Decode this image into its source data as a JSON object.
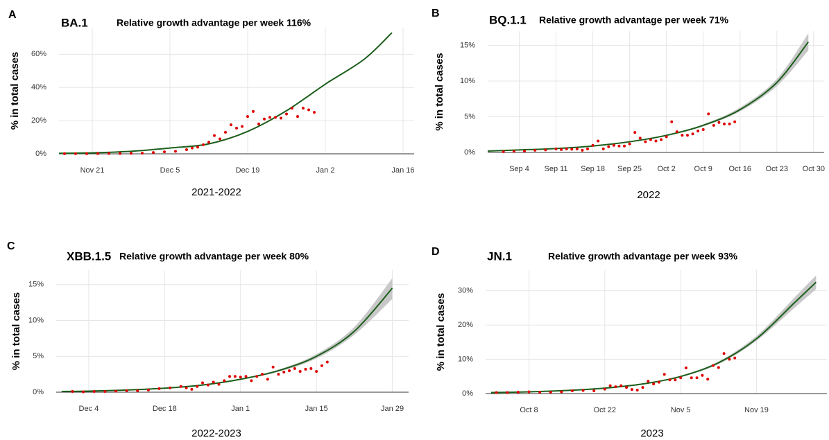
{
  "chart_data": [
    {
      "type": "line",
      "panel": "A",
      "variant": "BA.1",
      "title": "Relative growth advantage per week 116%",
      "ylabel": "% in total cases",
      "xlabel": "2021-2022",
      "xlim": [
        "2021-11-15",
        "2022-01-18"
      ],
      "xticks": [
        {
          "value": "2021-11-21",
          "label": "Nov 21"
        },
        {
          "value": "2021-12-05",
          "label": "Dec 5"
        },
        {
          "value": "2021-12-19",
          "label": "Dec 19"
        },
        {
          "value": "2022-01-02",
          "label": "Jan 2"
        },
        {
          "value": "2022-01-16",
          "label": "Jan 16"
        }
      ],
      "ylim": [
        0,
        76
      ],
      "yticks": [
        {
          "value": 0,
          "label": "0%"
        },
        {
          "value": 20,
          "label": "20%"
        },
        {
          "value": 40,
          "label": "40%"
        },
        {
          "value": 60,
          "label": "60%"
        }
      ],
      "grid": true,
      "points": {
        "color": "#e00000",
        "x": [
          "2021-11-16",
          "2021-11-18",
          "2021-11-20",
          "2021-11-22",
          "2021-11-24",
          "2021-11-26",
          "2021-11-28",
          "2021-11-30",
          "2021-12-02",
          "2021-12-04",
          "2021-12-06",
          "2021-12-08",
          "2021-12-09",
          "2021-12-10",
          "2021-12-11",
          "2021-12-12",
          "2021-12-13",
          "2021-12-14",
          "2021-12-15",
          "2021-12-16",
          "2021-12-17",
          "2021-12-18",
          "2021-12-19",
          "2021-12-20",
          "2021-12-21",
          "2021-12-22",
          "2021-12-23",
          "2021-12-24",
          "2021-12-25",
          "2021-12-26",
          "2021-12-27",
          "2021-12-28",
          "2021-12-29",
          "2021-12-30",
          "2021-12-31"
        ],
        "values": [
          0.1,
          0.1,
          0.1,
          0.15,
          0.2,
          0.2,
          0.3,
          0.4,
          0.8,
          1.2,
          1.5,
          2.5,
          3.5,
          4,
          5.5,
          7,
          11,
          9,
          13,
          17.5,
          15.5,
          16.5,
          22.5,
          25.5,
          18,
          21,
          22,
          22,
          21.5,
          24,
          27.5,
          22.5,
          27.5,
          26.5,
          25
        ]
      },
      "fit": {
        "color": "#1b5e1b",
        "x": [
          "2021-11-15",
          "2021-11-21",
          "2021-11-28",
          "2021-12-05",
          "2021-12-12",
          "2021-12-19",
          "2021-12-26",
          "2022-01-02",
          "2022-01-09",
          "2022-01-14"
        ],
        "values": [
          0.3,
          0.6,
          1.5,
          3.5,
          6,
          13.5,
          26,
          42,
          57,
          73
        ]
      }
    },
    {
      "type": "line",
      "panel": "B",
      "variant": "BQ.1.1",
      "title": "Relative growth advantage per week 71%",
      "ylabel": "% in total cases",
      "xlabel": "2022",
      "xlim": [
        "2022-08-29",
        "2022-11-01"
      ],
      "xticks": [
        {
          "value": "2022-09-04",
          "label": "Sep 4"
        },
        {
          "value": "2022-09-11",
          "label": "Sep 11"
        },
        {
          "value": "2022-09-18",
          "label": "Sep 18"
        },
        {
          "value": "2022-09-25",
          "label": "Sep 25"
        },
        {
          "value": "2022-10-02",
          "label": "Oct 2"
        },
        {
          "value": "2022-10-09",
          "label": "Oct 9"
        },
        {
          "value": "2022-10-16",
          "label": "Oct 16"
        },
        {
          "value": "2022-10-23",
          "label": "Oct 23"
        },
        {
          "value": "2022-10-30",
          "label": "Oct 30"
        }
      ],
      "ylim": [
        0,
        17
      ],
      "yticks": [
        {
          "value": 0,
          "label": "0%"
        },
        {
          "value": 5,
          "label": "5%"
        },
        {
          "value": 10,
          "label": "10%"
        },
        {
          "value": 15,
          "label": "15%"
        }
      ],
      "grid": true,
      "points": {
        "color": "#e00000",
        "x": [
          "2022-09-01",
          "2022-09-03",
          "2022-09-05",
          "2022-09-07",
          "2022-09-09",
          "2022-09-11",
          "2022-09-12",
          "2022-09-13",
          "2022-09-14",
          "2022-09-15",
          "2022-09-16",
          "2022-09-17",
          "2022-09-18",
          "2022-09-19",
          "2022-09-20",
          "2022-09-21",
          "2022-09-22",
          "2022-09-23",
          "2022-09-24",
          "2022-09-25",
          "2022-09-26",
          "2022-09-27",
          "2022-09-28",
          "2022-09-29",
          "2022-09-30",
          "2022-10-01",
          "2022-10-02",
          "2022-10-03",
          "2022-10-04",
          "2022-10-05",
          "2022-10-06",
          "2022-10-07",
          "2022-10-08",
          "2022-10-09",
          "2022-10-10",
          "2022-10-11",
          "2022-10-12",
          "2022-10-13",
          "2022-10-14",
          "2022-10-15"
        ],
        "values": [
          0.1,
          0.15,
          0.2,
          0.3,
          0.35,
          0.5,
          0.4,
          0.5,
          0.45,
          0.5,
          0.3,
          0.5,
          1.0,
          1.6,
          0.5,
          0.8,
          1.0,
          0.9,
          0.9,
          1.2,
          2.8,
          2.0,
          1.5,
          1.8,
          1.6,
          1.8,
          2.2,
          4.3,
          2.9,
          2.4,
          2.4,
          2.6,
          3.0,
          3.2,
          5.4,
          3.8,
          4.2,
          4.0,
          4.0,
          4.3
        ]
      },
      "fit": {
        "color": "#1b5e1b",
        "band_color": "#c8c8c8",
        "x": [
          "2022-08-29",
          "2022-09-04",
          "2022-09-11",
          "2022-09-18",
          "2022-09-25",
          "2022-10-02",
          "2022-10-09",
          "2022-10-16",
          "2022-10-23",
          "2022-10-29"
        ],
        "values": [
          0.2,
          0.35,
          0.55,
          0.9,
          1.5,
          2.4,
          3.8,
          6.0,
          9.8,
          15.5
        ],
        "lower": [
          0.2,
          0.35,
          0.53,
          0.87,
          1.45,
          2.3,
          3.65,
          5.75,
          9.3,
          14.3
        ],
        "upper": [
          0.2,
          0.36,
          0.57,
          0.93,
          1.55,
          2.5,
          3.95,
          6.3,
          10.3,
          16.7
        ]
      }
    },
    {
      "type": "line",
      "panel": "C",
      "variant": "XBB.1.5",
      "title": "Relative growth advantage per week 80%",
      "ylabel": "% in total cases",
      "xlabel": "2022-2023",
      "xlim": [
        "2022-11-28",
        "2023-02-01"
      ],
      "xticks": [
        {
          "value": "2022-12-04",
          "label": "Dec 4"
        },
        {
          "value": "2022-12-18",
          "label": "Dec 18"
        },
        {
          "value": "2023-01-01",
          "label": "Jan 1"
        },
        {
          "value": "2023-01-15",
          "label": "Jan 15"
        },
        {
          "value": "2023-01-29",
          "label": "Jan 29"
        }
      ],
      "ylim": [
        0,
        17
      ],
      "yticks": [
        {
          "value": 0,
          "label": "0%"
        },
        {
          "value": 5,
          "label": "5%"
        },
        {
          "value": 10,
          "label": "10%"
        },
        {
          "value": 15,
          "label": "15%"
        }
      ],
      "grid": true,
      "points": {
        "color": "#e00000",
        "x": [
          "2022-12-01",
          "2022-12-03",
          "2022-12-05",
          "2022-12-07",
          "2022-12-09",
          "2022-12-11",
          "2022-12-13",
          "2022-12-15",
          "2022-12-17",
          "2022-12-19",
          "2022-12-21",
          "2022-12-22",
          "2022-12-23",
          "2022-12-24",
          "2022-12-25",
          "2022-12-26",
          "2022-12-27",
          "2022-12-28",
          "2022-12-29",
          "2022-12-30",
          "2022-12-31",
          "2023-01-01",
          "2023-01-02",
          "2023-01-03",
          "2023-01-04",
          "2023-01-05",
          "2023-01-06",
          "2023-01-07",
          "2023-01-08",
          "2023-01-09",
          "2023-01-10",
          "2023-01-11",
          "2023-01-12",
          "2023-01-13",
          "2023-01-14",
          "2023-01-15",
          "2023-01-16",
          "2023-01-17"
        ],
        "values": [
          0.1,
          0.05,
          0.1,
          0.1,
          0.15,
          0.2,
          0.2,
          0.3,
          0.5,
          0.6,
          0.8,
          0.6,
          0.4,
          0.8,
          1.3,
          1.0,
          1.4,
          1.1,
          1.6,
          2.2,
          2.2,
          2.1,
          2.2,
          1.6,
          2.2,
          2.5,
          1.8,
          3.5,
          2.5,
          2.8,
          3.0,
          3.3,
          2.9,
          3.2,
          3.3,
          2.9,
          3.7,
          4.2
        ]
      },
      "fit": {
        "color": "#1b5e1b",
        "band_color": "#c8c8c8",
        "x": [
          "2022-11-29",
          "2022-12-04",
          "2022-12-11",
          "2022-12-18",
          "2022-12-25",
          "2023-01-01",
          "2023-01-08",
          "2023-01-15",
          "2023-01-22",
          "2023-01-29"
        ],
        "values": [
          0.1,
          0.15,
          0.3,
          0.55,
          1.0,
          1.8,
          3.0,
          5.0,
          8.5,
          14.5
        ],
        "lower": [
          0.1,
          0.15,
          0.29,
          0.53,
          0.96,
          1.72,
          2.85,
          4.7,
          8.0,
          13.0
        ],
        "upper": [
          0.1,
          0.16,
          0.31,
          0.57,
          1.04,
          1.9,
          3.15,
          5.3,
          9.1,
          15.9
        ]
      }
    },
    {
      "type": "line",
      "panel": "D",
      "variant": "JN.1",
      "title": "Relative growth advantage per week 93%",
      "ylabel": "% in total cases",
      "xlabel": "2023",
      "xlim": [
        "2023-09-30",
        "2023-12-02"
      ],
      "xticks": [
        {
          "value": "2023-10-08",
          "label": "Oct 8"
        },
        {
          "value": "2023-10-22",
          "label": "Oct 22"
        },
        {
          "value": "2023-11-05",
          "label": "Nov 5"
        },
        {
          "value": "2023-11-19",
          "label": "Nov 19"
        }
      ],
      "ylim": [
        0,
        36
      ],
      "yticks": [
        {
          "value": 0,
          "label": "0%"
        },
        {
          "value": 10,
          "label": "10%"
        },
        {
          "value": 20,
          "label": "20%"
        },
        {
          "value": 30,
          "label": "30%"
        }
      ],
      "grid": true,
      "points": {
        "color": "#e00000",
        "x": [
          "2023-10-02",
          "2023-10-04",
          "2023-10-06",
          "2023-10-08",
          "2023-10-10",
          "2023-10-12",
          "2023-10-14",
          "2023-10-16",
          "2023-10-18",
          "2023-10-20",
          "2023-10-22",
          "2023-10-23",
          "2023-10-24",
          "2023-10-25",
          "2023-10-26",
          "2023-10-27",
          "2023-10-28",
          "2023-10-29",
          "2023-10-30",
          "2023-10-31",
          "2023-11-01",
          "2023-11-02",
          "2023-11-03",
          "2023-11-04",
          "2023-11-05",
          "2023-11-06",
          "2023-11-07",
          "2023-11-08",
          "2023-11-09",
          "2023-11-10",
          "2023-11-11",
          "2023-11-12",
          "2023-11-13",
          "2023-11-14",
          "2023-11-15"
        ],
        "values": [
          0.3,
          0.3,
          0.4,
          0.5,
          0.4,
          0.4,
          0.5,
          0.8,
          0.9,
          0.8,
          1.3,
          2.3,
          2.0,
          2.3,
          1.8,
          1.2,
          1.0,
          1.8,
          3.6,
          2.8,
          3.3,
          5.6,
          4.0,
          4.0,
          4.6,
          7.5,
          4.6,
          4.6,
          5.3,
          4.2,
          8.2,
          7.6,
          11.7,
          10.0,
          10.4
        ]
      },
      "fit": {
        "color": "#1b5e1b",
        "band_color": "#c8c8c8",
        "x": [
          "2023-10-01",
          "2023-10-08",
          "2023-10-15",
          "2023-10-22",
          "2023-10-29",
          "2023-11-05",
          "2023-11-12",
          "2023-11-19",
          "2023-11-26",
          "2023-11-30"
        ],
        "values": [
          0.3,
          0.5,
          0.9,
          1.6,
          2.8,
          5.0,
          9.0,
          16.0,
          26.5,
          32.5
        ],
        "lower": [
          0.3,
          0.48,
          0.86,
          1.53,
          2.68,
          4.8,
          8.6,
          15.4,
          25,
          30.5
        ],
        "upper": [
          0.3,
          0.52,
          0.94,
          1.67,
          2.92,
          5.2,
          9.4,
          16.8,
          28,
          34.5
        ]
      }
    }
  ]
}
